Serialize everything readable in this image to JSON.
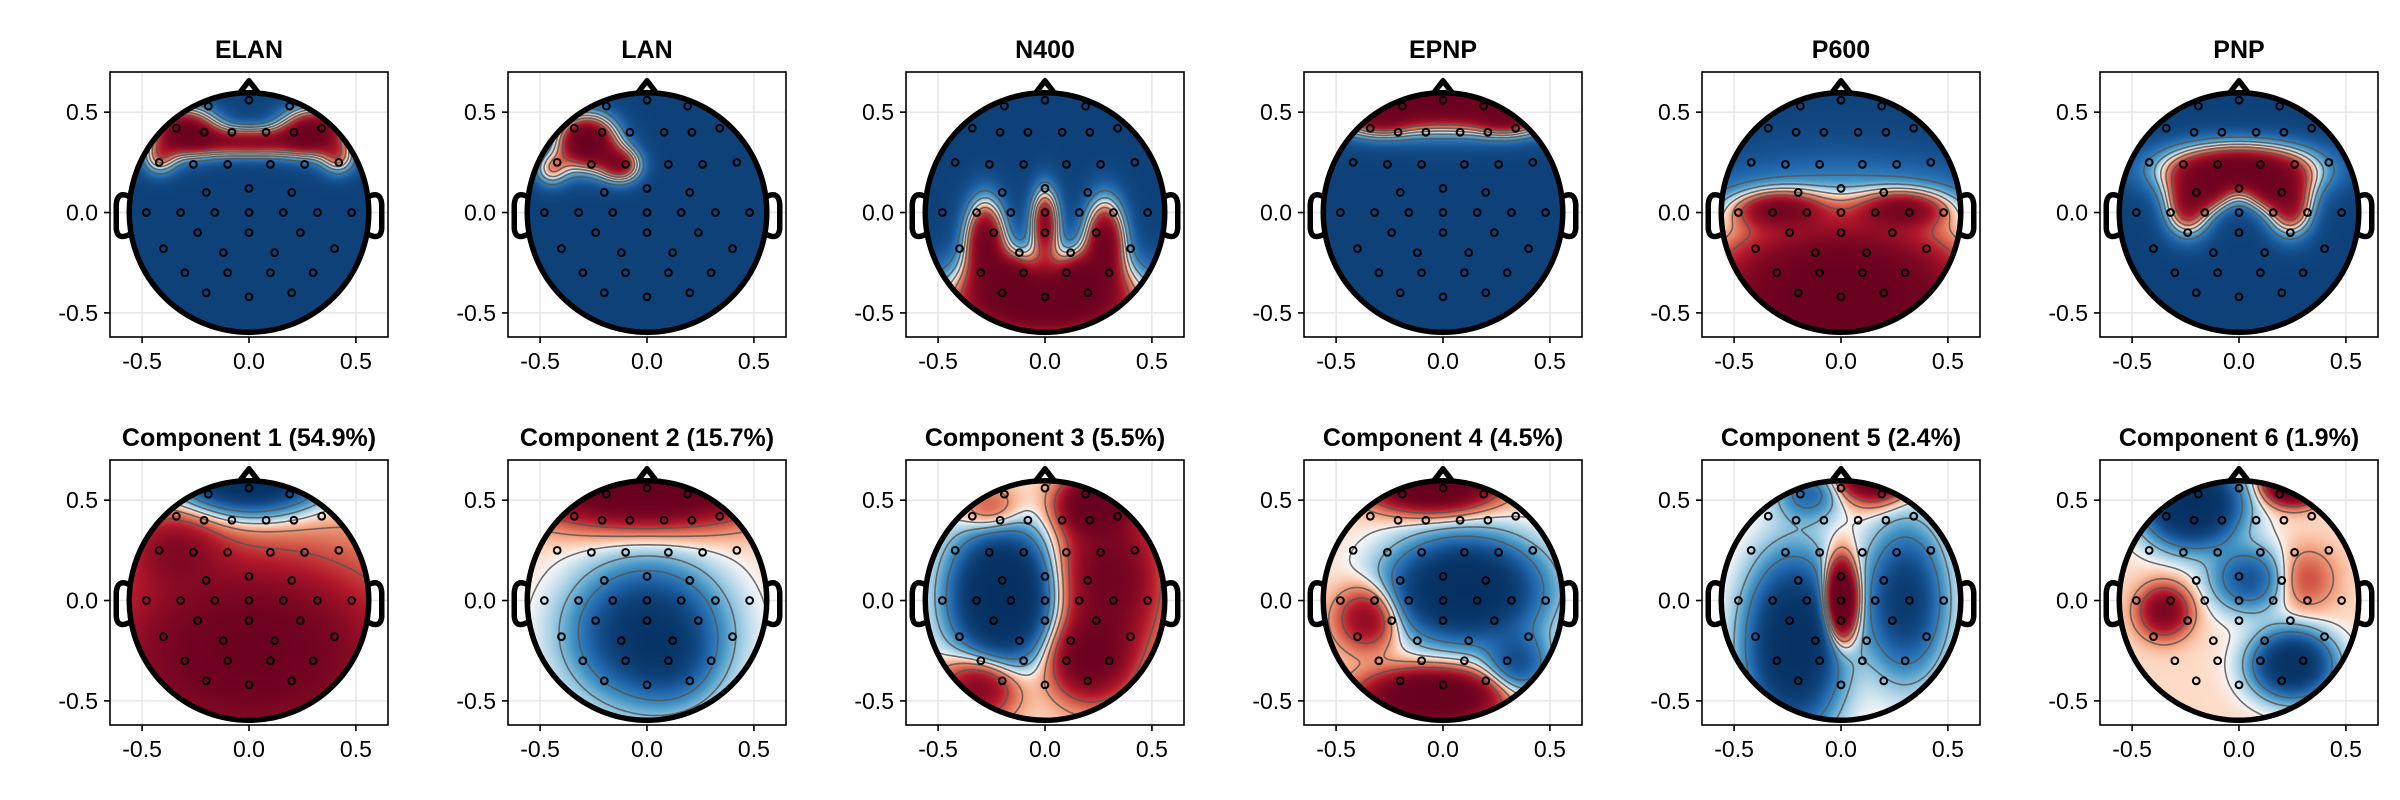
{
  "chart_data": {
    "type": "heatmap",
    "subtype": "topoplot-grid",
    "colormap": "RdBu (reversed: red positive, blue negative)",
    "grid": true,
    "axis": {
      "xlim": [
        -0.65,
        0.65
      ],
      "ylim": [
        -0.62,
        0.7
      ],
      "xticks": [
        "-0.5",
        "0.0",
        "0.5"
      ],
      "yticks": [
        "0.5",
        "0.0",
        "-0.5"
      ]
    },
    "panels": [
      {
        "title": "ELAN",
        "blobs": [
          {
            "x": -0.3,
            "y": 0.38,
            "sx": 0.11,
            "sy": 0.08,
            "a": 2.2
          },
          {
            "x": 0.3,
            "y": 0.38,
            "sx": 0.11,
            "sy": 0.08,
            "a": 2.2
          },
          {
            "x": 0.0,
            "y": 0.33,
            "sx": 0.18,
            "sy": 0.05,
            "a": 1.8
          },
          {
            "x": -0.42,
            "y": 0.25,
            "sx": 0.06,
            "sy": 0.06,
            "a": 1.0
          },
          {
            "x": 0.42,
            "y": 0.25,
            "sx": 0.06,
            "sy": 0.06,
            "a": 1.0
          }
        ],
        "base": -1.0,
        "sat": 1.6
      },
      {
        "title": "LAN",
        "blobs": [
          {
            "x": -0.28,
            "y": 0.33,
            "sx": 0.1,
            "sy": 0.09,
            "a": 2.6
          },
          {
            "x": -0.12,
            "y": 0.22,
            "sx": 0.07,
            "sy": 0.06,
            "a": 1.6
          },
          {
            "x": -0.45,
            "y": 0.2,
            "sx": 0.06,
            "sy": 0.06,
            "a": 1.0
          }
        ],
        "base": -1.0,
        "sat": 1.6
      },
      {
        "title": "N400",
        "blobs": [
          {
            "x": 0.0,
            "y": -0.42,
            "sx": 0.35,
            "sy": 0.14,
            "a": 2.6
          },
          {
            "x": -0.28,
            "y": -0.12,
            "sx": 0.07,
            "sy": 0.14,
            "a": 2.0
          },
          {
            "x": 0.28,
            "y": -0.12,
            "sx": 0.07,
            "sy": 0.14,
            "a": 2.0
          },
          {
            "x": 0.0,
            "y": -0.04,
            "sx": 0.05,
            "sy": 0.12,
            "a": 1.8
          },
          {
            "x": -0.15,
            "y": -0.3,
            "sx": 0.06,
            "sy": 0.08,
            "a": 0.8
          },
          {
            "x": 0.15,
            "y": -0.3,
            "sx": 0.06,
            "sy": 0.08,
            "a": 0.8
          }
        ],
        "base": -1.0,
        "sat": 1.6
      },
      {
        "title": "EPNP",
        "blobs": [
          {
            "x": 0.0,
            "y": 0.52,
            "sx": 0.45,
            "sy": 0.1,
            "a": 2.6
          },
          {
            "x": -0.3,
            "y": 0.42,
            "sx": 0.1,
            "sy": 0.05,
            "a": 0.8
          },
          {
            "x": 0.3,
            "y": 0.42,
            "sx": 0.1,
            "sy": 0.05,
            "a": 0.8
          }
        ],
        "base": -1.0,
        "sat": 1.6
      },
      {
        "title": "P600",
        "blobs": [
          {
            "x": 0.0,
            "y": -0.4,
            "sx": 0.55,
            "sy": 0.32,
            "a": 2.8
          },
          {
            "x": -0.3,
            "y": 0.02,
            "sx": 0.14,
            "sy": 0.06,
            "a": 1.1
          },
          {
            "x": 0.3,
            "y": 0.02,
            "sx": 0.14,
            "sy": 0.06,
            "a": 1.1
          }
        ],
        "base": -1.0,
        "sat": 1.6
      },
      {
        "title": "PNP",
        "blobs": [
          {
            "x": 0.0,
            "y": 0.2,
            "sx": 0.26,
            "sy": 0.09,
            "a": 2.4
          },
          {
            "x": -0.24,
            "y": 0.02,
            "sx": 0.08,
            "sy": 0.1,
            "a": 1.6
          },
          {
            "x": 0.24,
            "y": 0.02,
            "sx": 0.08,
            "sy": 0.1,
            "a": 1.6
          },
          {
            "x": -0.12,
            "y": 0.08,
            "sx": 0.06,
            "sy": 0.06,
            "a": 0.6
          },
          {
            "x": 0.12,
            "y": 0.08,
            "sx": 0.06,
            "sy": 0.06,
            "a": 0.6
          }
        ],
        "base": -1.0,
        "sat": 1.6
      },
      {
        "title": "Component 1 (54.9%)",
        "blobs": [
          {
            "x": 0.0,
            "y": 0.6,
            "sx": 0.22,
            "sy": 0.12,
            "a": -2.2
          },
          {
            "x": 0.0,
            "y": -0.25,
            "sx": 0.45,
            "sy": 0.3,
            "a": 1.4
          },
          {
            "x": -0.35,
            "y": 0.25,
            "sx": 0.15,
            "sy": 0.12,
            "a": 0.6
          }
        ],
        "base": 0.1,
        "sat": 1.6
      },
      {
        "title": "Component 2 (15.7%)",
        "blobs": [
          {
            "x": 0.0,
            "y": 0.55,
            "sx": 0.35,
            "sy": 0.12,
            "a": 2.2
          },
          {
            "x": 0.0,
            "y": -0.15,
            "sx": 0.22,
            "sy": 0.2,
            "a": -1.4
          },
          {
            "x": 0.12,
            "y": -0.3,
            "sx": 0.12,
            "sy": 0.12,
            "a": -0.3
          }
        ],
        "base": 0.05,
        "sat": 1.6
      },
      {
        "title": "Component 3 (5.5%)",
        "blobs": [
          {
            "x": -0.2,
            "y": 0.02,
            "sx": 0.15,
            "sy": 0.2,
            "a": -2.2
          },
          {
            "x": 0.3,
            "y": 0.1,
            "sx": 0.16,
            "sy": 0.26,
            "a": 1.2
          },
          {
            "x": 0.2,
            "y": -0.28,
            "sx": 0.12,
            "sy": 0.12,
            "a": 1.1
          },
          {
            "x": 0.22,
            "y": 0.45,
            "sx": 0.1,
            "sy": 0.08,
            "a": 1.4
          },
          {
            "x": -0.3,
            "y": -0.4,
            "sx": 0.12,
            "sy": 0.1,
            "a": 1.0
          },
          {
            "x": -0.25,
            "y": 0.42,
            "sx": 0.1,
            "sy": 0.08,
            "a": 0.5
          }
        ],
        "base": 0.05,
        "sat": 1.6
      },
      {
        "title": "Component 4 (4.5%)",
        "blobs": [
          {
            "x": -0.05,
            "y": 0.55,
            "sx": 0.18,
            "sy": 0.08,
            "a": 2.2
          },
          {
            "x": 0.1,
            "y": 0.05,
            "sx": 0.22,
            "sy": 0.15,
            "a": -2.0
          },
          {
            "x": -0.05,
            "y": -0.45,
            "sx": 0.2,
            "sy": 0.08,
            "a": 2.0
          },
          {
            "x": -0.35,
            "y": -0.08,
            "sx": 0.1,
            "sy": 0.1,
            "a": 0.9
          },
          {
            "x": 0.35,
            "y": -0.3,
            "sx": 0.1,
            "sy": 0.1,
            "a": -0.8
          }
        ],
        "base": 0.05,
        "sat": 1.6
      },
      {
        "title": "Component 5 (2.4%)",
        "blobs": [
          {
            "x": 0.0,
            "y": 0.0,
            "sx": 0.05,
            "sy": 0.12,
            "a": 2.4
          },
          {
            "x": 0.15,
            "y": 0.6,
            "sx": 0.1,
            "sy": 0.08,
            "a": 2.0
          },
          {
            "x": -0.22,
            "y": -0.2,
            "sx": 0.14,
            "sy": 0.25,
            "a": -1.8
          },
          {
            "x": 0.3,
            "y": 0.0,
            "sx": 0.12,
            "sy": 0.22,
            "a": -1.2
          },
          {
            "x": -0.15,
            "y": 0.5,
            "sx": 0.1,
            "sy": 0.08,
            "a": -0.6
          }
        ],
        "base": 0.05,
        "sat": 1.6
      },
      {
        "title": "Component 6 (1.9%)",
        "blobs": [
          {
            "x": -0.22,
            "y": 0.45,
            "sx": 0.14,
            "sy": 0.12,
            "a": -2.0
          },
          {
            "x": 0.25,
            "y": 0.55,
            "sx": 0.08,
            "sy": 0.06,
            "a": 2.2
          },
          {
            "x": 0.25,
            "y": -0.3,
            "sx": 0.12,
            "sy": 0.1,
            "a": -1.6
          },
          {
            "x": -0.35,
            "y": -0.05,
            "sx": 0.08,
            "sy": 0.08,
            "a": 1.0
          },
          {
            "x": 0.05,
            "y": 0.1,
            "sx": 0.12,
            "sy": 0.1,
            "a": -0.8
          },
          {
            "x": 0.3,
            "y": 0.1,
            "sx": 0.1,
            "sy": 0.1,
            "a": 0.4
          }
        ],
        "base": 0.05,
        "sat": 1.6
      }
    ],
    "electrodes": [
      [
        -0.19,
        0.53
      ],
      [
        0.0,
        0.56
      ],
      [
        0.19,
        0.53
      ],
      [
        -0.34,
        0.42
      ],
      [
        -0.21,
        0.4
      ],
      [
        -0.08,
        0.4
      ],
      [
        0.08,
        0.4
      ],
      [
        0.21,
        0.4
      ],
      [
        0.34,
        0.42
      ],
      [
        -0.42,
        0.25
      ],
      [
        -0.26,
        0.24
      ],
      [
        -0.1,
        0.24
      ],
      [
        0.1,
        0.24
      ],
      [
        0.26,
        0.24
      ],
      [
        0.42,
        0.25
      ],
      [
        -0.2,
        0.1
      ],
      [
        0.0,
        0.12
      ],
      [
        0.2,
        0.1
      ],
      [
        -0.48,
        0.0
      ],
      [
        -0.32,
        0.0
      ],
      [
        -0.16,
        0.0
      ],
      [
        0.0,
        0.0
      ],
      [
        0.16,
        0.0
      ],
      [
        0.32,
        0.0
      ],
      [
        0.48,
        0.0
      ],
      [
        -0.24,
        -0.1
      ],
      [
        0.0,
        -0.1
      ],
      [
        0.24,
        -0.1
      ],
      [
        -0.4,
        -0.18
      ],
      [
        -0.12,
        -0.2
      ],
      [
        0.12,
        -0.2
      ],
      [
        0.4,
        -0.18
      ],
      [
        -0.3,
        -0.3
      ],
      [
        -0.1,
        -0.3
      ],
      [
        0.1,
        -0.3
      ],
      [
        0.3,
        -0.3
      ],
      [
        -0.2,
        -0.4
      ],
      [
        0.0,
        -0.42
      ],
      [
        0.2,
        -0.4
      ]
    ]
  }
}
